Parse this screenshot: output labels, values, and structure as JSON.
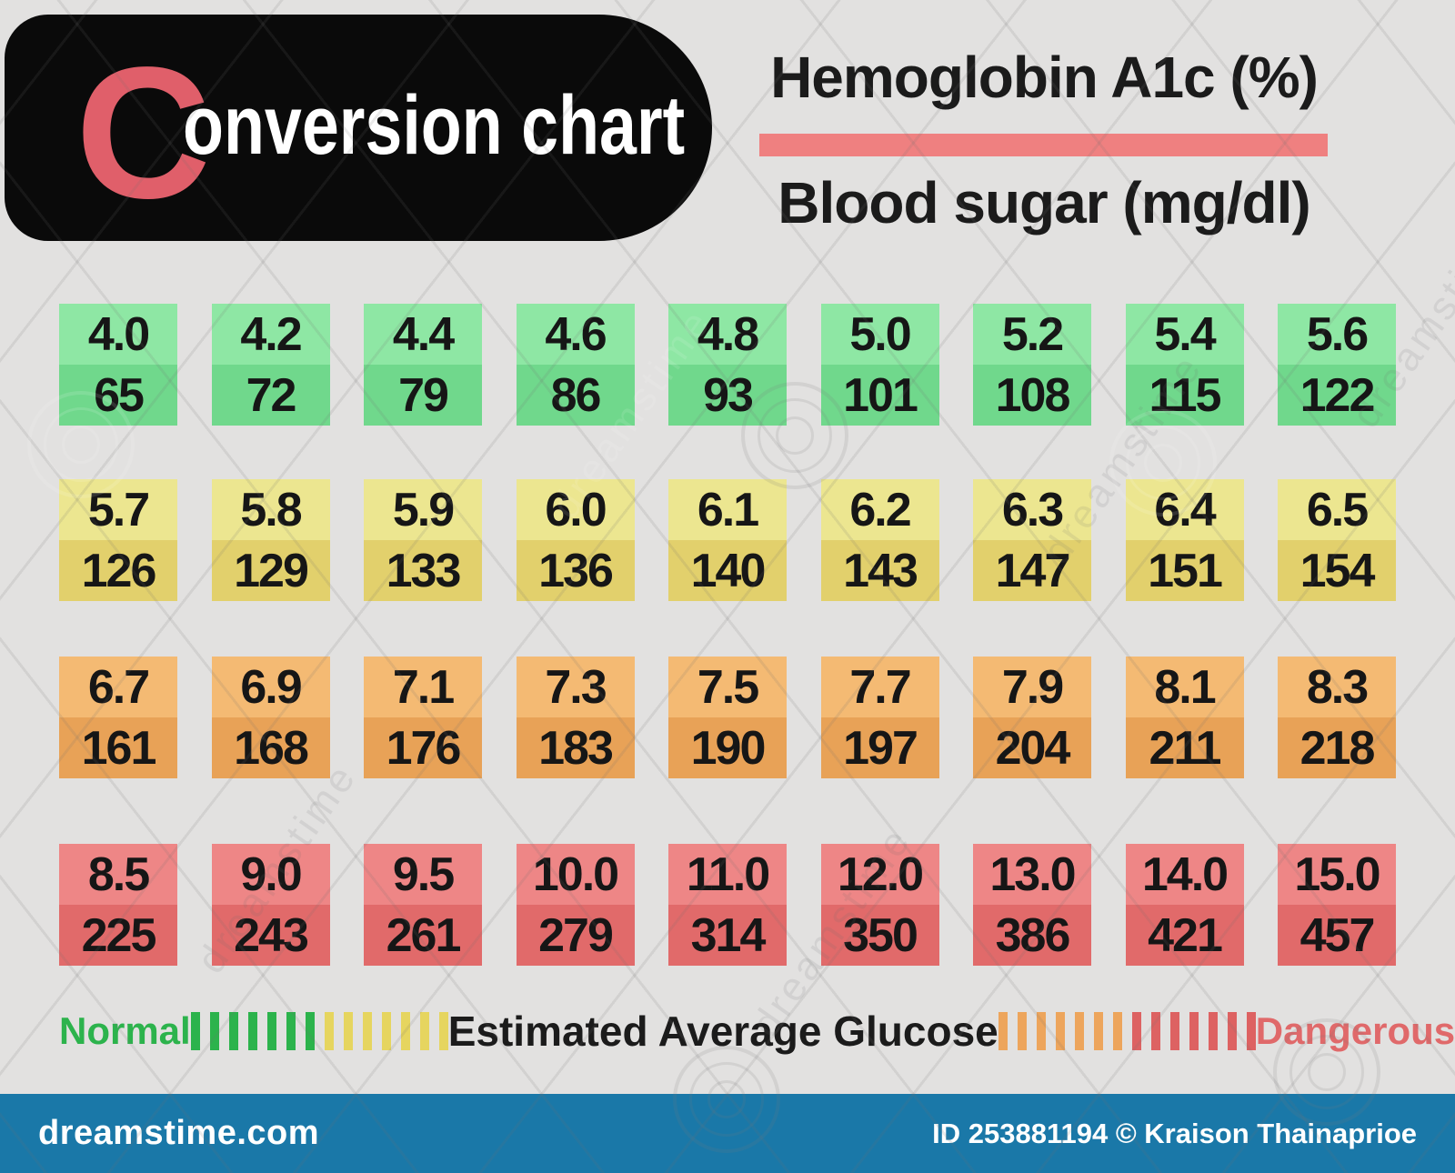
{
  "title_block": {
    "drop_cap": "C",
    "title_rest": "onversion chart"
  },
  "header": {
    "top_label": "Hemoglobin A1c (%)",
    "bottom_label": "Blood sugar (mg/dl)"
  },
  "chart_data": {
    "type": "table",
    "title": "Conversion chart: Hemoglobin A1c (%) to Blood sugar (mg/dl)",
    "columns": [
      "Hemoglobin A1c (%)",
      "Blood sugar (mg/dl)"
    ],
    "rows": [
      {
        "level": "normal",
        "cells": [
          [
            "4.0",
            "65"
          ],
          [
            "4.2",
            "72"
          ],
          [
            "4.4",
            "79"
          ],
          [
            "4.6",
            "86"
          ],
          [
            "4.8",
            "93"
          ],
          [
            "5.0",
            "101"
          ],
          [
            "5.2",
            "108"
          ],
          [
            "5.4",
            "115"
          ],
          [
            "5.6",
            "122"
          ]
        ]
      },
      {
        "level": "elevated",
        "cells": [
          [
            "5.7",
            "126"
          ],
          [
            "5.8",
            "129"
          ],
          [
            "5.9",
            "133"
          ],
          [
            "6.0",
            "136"
          ],
          [
            "6.1",
            "140"
          ],
          [
            "6.2",
            "143"
          ],
          [
            "6.3",
            "147"
          ],
          [
            "6.4",
            "151"
          ],
          [
            "6.5",
            "154"
          ]
        ]
      },
      {
        "level": "high",
        "cells": [
          [
            "6.7",
            "161"
          ],
          [
            "6.9",
            "168"
          ],
          [
            "7.1",
            "176"
          ],
          [
            "7.3",
            "183"
          ],
          [
            "7.5",
            "190"
          ],
          [
            "7.7",
            "197"
          ],
          [
            "7.9",
            "204"
          ],
          [
            "8.1",
            "211"
          ],
          [
            "8.3",
            "218"
          ]
        ]
      },
      {
        "level": "dangerous",
        "cells": [
          [
            "8.5",
            "225"
          ],
          [
            "9.0",
            "243"
          ],
          [
            "9.5",
            "261"
          ],
          [
            "10.0",
            "279"
          ],
          [
            "11.0",
            "314"
          ],
          [
            "12.0",
            "350"
          ],
          [
            "13.0",
            "386"
          ],
          [
            "14.0",
            "421"
          ],
          [
            "15.0",
            "457"
          ]
        ]
      }
    ]
  },
  "row_colors": {
    "normal": {
      "top": "#8EE7A4",
      "bottom": "#70D88C"
    },
    "elevated": {
      "top": "#ECE690",
      "bottom": "#E2D06C"
    },
    "high": {
      "top": "#F4BA73",
      "bottom": "#E8A257"
    },
    "dangerous": {
      "top": "#EE8686",
      "bottom": "#E16A6A"
    }
  },
  "legend": {
    "left_label": "Normal",
    "center_label": "Estimated Average Glucose",
    "right_label": "Dangerous",
    "left_label_color": "#2CB34C",
    "right_label_color": "#E0696A",
    "left_bar_colors": [
      "#2CB34C",
      "#E6D55F"
    ],
    "right_bar_colors": [
      "#EDA55C",
      "#DD6262"
    ],
    "bars_per_color": 7
  },
  "footer": {
    "site": "dreamstime.com",
    "credit": "ID 253881194 © Kraison Thainaprioe"
  },
  "watermark": {
    "text": "dreamstime"
  },
  "colors": {
    "background": "#E2E1E0",
    "title_bg": "#0A0A0A",
    "accent_red": "#E05F6A",
    "divider": "#EF8080",
    "footer_bg": "#1A78A8"
  }
}
